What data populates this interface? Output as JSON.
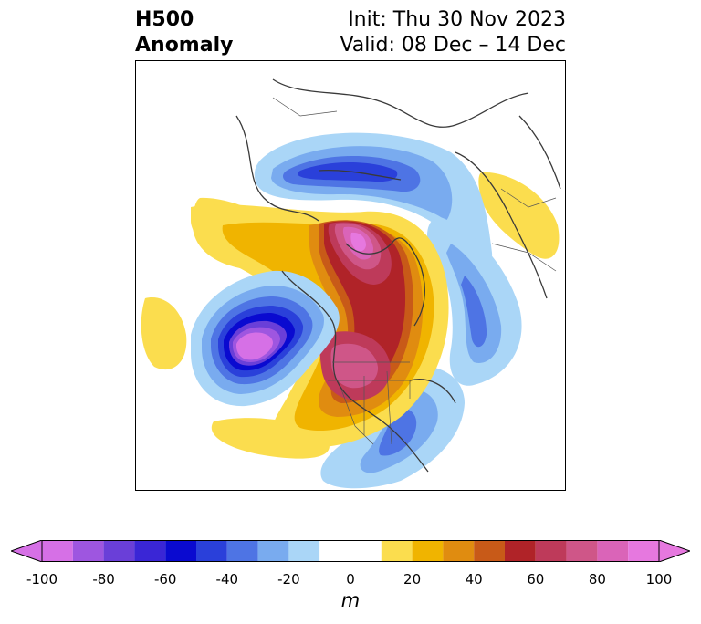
{
  "header": {
    "left_line1": "H500",
    "left_line2": "Anomaly",
    "init": "Init: Thu 30 Nov 2023",
    "valid": "Valid: 08 Dec – 14 Dec"
  },
  "colorbar": {
    "unit": "m",
    "min": -100,
    "max": 100,
    "extend": "both",
    "tick_labels": [
      "-100",
      "-80",
      "-60",
      "-40",
      "-20",
      "0",
      "20",
      "40",
      "60",
      "80",
      "100"
    ],
    "tick_values": [
      -100,
      -80,
      -60,
      -40,
      -20,
      0,
      20,
      40,
      60,
      80,
      100
    ],
    "bin_edges": [
      -100,
      -90,
      -80,
      -70,
      -60,
      -50,
      -40,
      -30,
      -20,
      -10,
      10,
      20,
      30,
      40,
      50,
      60,
      70,
      80,
      90,
      100
    ],
    "colors": [
      "#d670e6",
      "#9e56e0",
      "#6a3fd8",
      "#3a26d6",
      "#0a0ad0",
      "#2a40da",
      "#4e74e4",
      "#79abef",
      "#aad6f7",
      "#ffffff",
      "#fbdd4e",
      "#f0b400",
      "#e08c10",
      "#c85a18",
      "#b02328",
      "#be3a5a",
      "#cf5688",
      "#da64b8",
      "#e678df"
    ],
    "under_color": "#d670e6",
    "over_color": "#e678df"
  },
  "map": {
    "projection": "polar stereographic (north pole)",
    "field": "500 hPa geopotential height anomaly",
    "features": [
      {
        "name": "ridge-north-america-arctic",
        "sign": "positive",
        "peak": 95
      },
      {
        "name": "ridge-central-north-america",
        "sign": "positive",
        "peak": 80
      },
      {
        "name": "trough-gulf-of-alaska",
        "sign": "negative",
        "peak": -95
      },
      {
        "name": "trough-northern-eurasia",
        "sign": "negative",
        "peak": -70
      },
      {
        "name": "trough-east-siberia-pacific",
        "sign": "negative",
        "peak": -50
      },
      {
        "name": "trough-atlantic-seaboard",
        "sign": "negative",
        "peak": -45
      },
      {
        "name": "ridge-north-pacific",
        "sign": "positive",
        "peak": 15
      },
      {
        "name": "ridge-east-asia",
        "sign": "positive",
        "peak": 15
      }
    ]
  }
}
